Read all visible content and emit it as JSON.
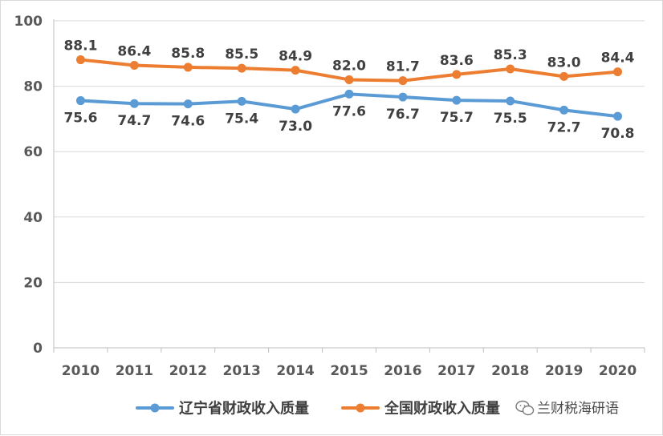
{
  "chart_data": {
    "type": "line",
    "title": "",
    "xlabel": "",
    "ylabel": "",
    "categories": [
      "2010",
      "2011",
      "2012",
      "2013",
      "2014",
      "2015",
      "2016",
      "2017",
      "2018",
      "2019",
      "2020"
    ],
    "ylim": [
      0,
      100
    ],
    "yticks": [
      "0",
      "20",
      "40",
      "60",
      "80",
      "100"
    ],
    "grid": true,
    "legend_position": "bottom",
    "series": [
      {
        "name": "辽宁省财政收入质量",
        "color": "#5b9bd5",
        "values": [
          75.6,
          74.7,
          74.6,
          75.4,
          73.0,
          77.6,
          76.7,
          75.7,
          75.5,
          72.7,
          70.8
        ],
        "labels": [
          "75.6",
          "74.7",
          "74.6",
          "75.4",
          "73.0",
          "77.6",
          "76.7",
          "75.7",
          "75.5",
          "72.7",
          "70.8"
        ],
        "label_position": "below"
      },
      {
        "name": "全国财政收入质量",
        "color": "#ed7d31",
        "values": [
          88.1,
          86.4,
          85.8,
          85.5,
          84.9,
          82.0,
          81.7,
          83.6,
          85.3,
          83.0,
          84.4
        ],
        "labels": [
          "88.1",
          "86.4",
          "85.8",
          "85.5",
          "84.9",
          "82.0",
          "81.7",
          "83.6",
          "85.3",
          "83.0",
          "84.4"
        ],
        "label_position": "above"
      }
    ]
  },
  "watermark": {
    "text": "兰财税海研语",
    "icon": "wechat-icon"
  }
}
